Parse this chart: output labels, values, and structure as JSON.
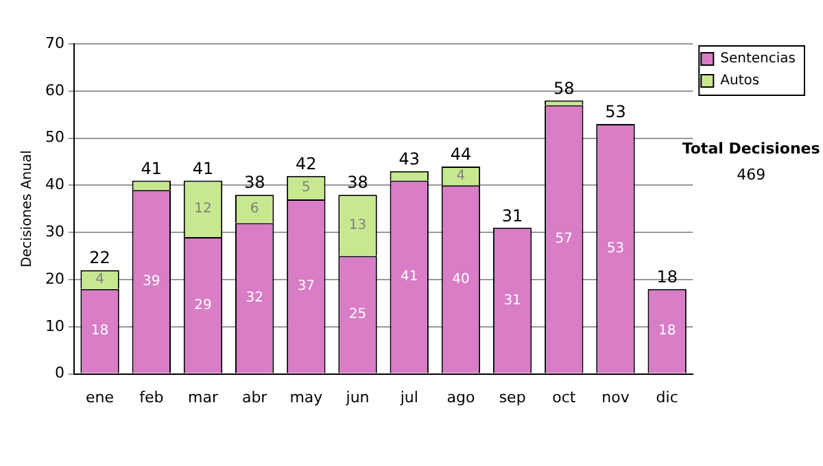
{
  "chart_data": {
    "type": "bar",
    "stacked": true,
    "ylabel": "Decisiones Anual",
    "categories": [
      "ene",
      "feb",
      "mar",
      "abr",
      "may",
      "jun",
      "jul",
      "ago",
      "sep",
      "oct",
      "nov",
      "dic"
    ],
    "series": [
      {
        "name": "Sentencias",
        "color": "#d87dc6",
        "values": [
          18,
          39,
          29,
          32,
          37,
          25,
          41,
          40,
          31,
          57,
          53,
          18
        ],
        "value_labels": [
          "18",
          "39",
          "29",
          "32",
          "37",
          "25",
          "41",
          "40",
          "31",
          "57",
          "53",
          "18"
        ]
      },
      {
        "name": "Autos",
        "color": "#c8e890",
        "values": [
          4,
          2,
          12,
          6,
          5,
          13,
          2,
          4,
          0,
          1,
          0,
          0
        ],
        "value_labels": [
          "4",
          null,
          "12",
          "6",
          "5",
          "13",
          null,
          "4",
          null,
          null,
          null,
          null
        ]
      }
    ],
    "totals": [
      "22",
      "41",
      "41",
      "38",
      "42",
      "38",
      "43",
      "44",
      "31",
      "58",
      "53",
      "18"
    ],
    "ylim": [
      0,
      70
    ],
    "yticks": [
      0,
      10,
      20,
      30,
      40,
      50,
      60,
      70
    ],
    "grid": "y",
    "legend": "top right",
    "annotations": [
      "Total Decisiones",
      "469"
    ]
  }
}
